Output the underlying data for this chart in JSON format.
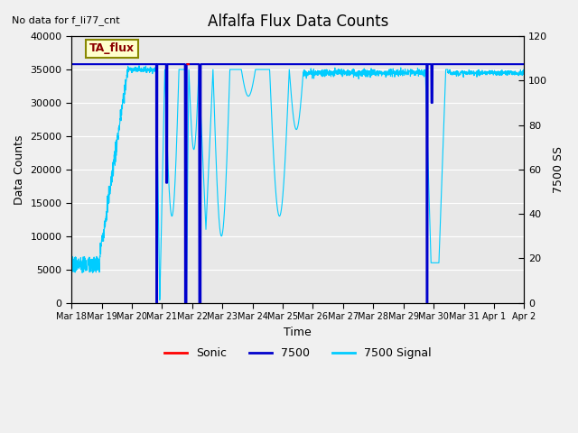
{
  "title": "Alfalfa Flux Data Counts",
  "top_left_text": "No data for f_li77_cnt",
  "box_label": "TA_flux",
  "xlabel": "Time",
  "ylabel_left": "Data Counts",
  "ylabel_right": "7500 SS",
  "ylim_left": [
    0,
    40000
  ],
  "ylim_right": [
    0,
    120
  ],
  "xtick_labels": [
    "Mar 18",
    "Mar 19",
    "Mar 20",
    "Mar 21",
    "Mar 22",
    "Mar 23",
    "Mar 24",
    "Mar 25",
    "Mar 26",
    "Mar 27",
    "Mar 28",
    "Mar 29",
    "Mar 30",
    "Mar 31",
    "Apr 1",
    "Apr 2"
  ],
  "bg_color": "#e8e8e8",
  "fig_color": "#f0f0f0",
  "sonic_color": "#ff0000",
  "flux7500_color": "#0000cc",
  "signal_color": "#00ccff",
  "legend_entries": [
    "Sonic",
    "7500",
    "7500 Signal"
  ],
  "yticks_left": [
    0,
    5000,
    10000,
    15000,
    20000,
    25000,
    30000,
    35000,
    40000
  ],
  "yticks_right": [
    0,
    20,
    40,
    60,
    80,
    100,
    120
  ]
}
